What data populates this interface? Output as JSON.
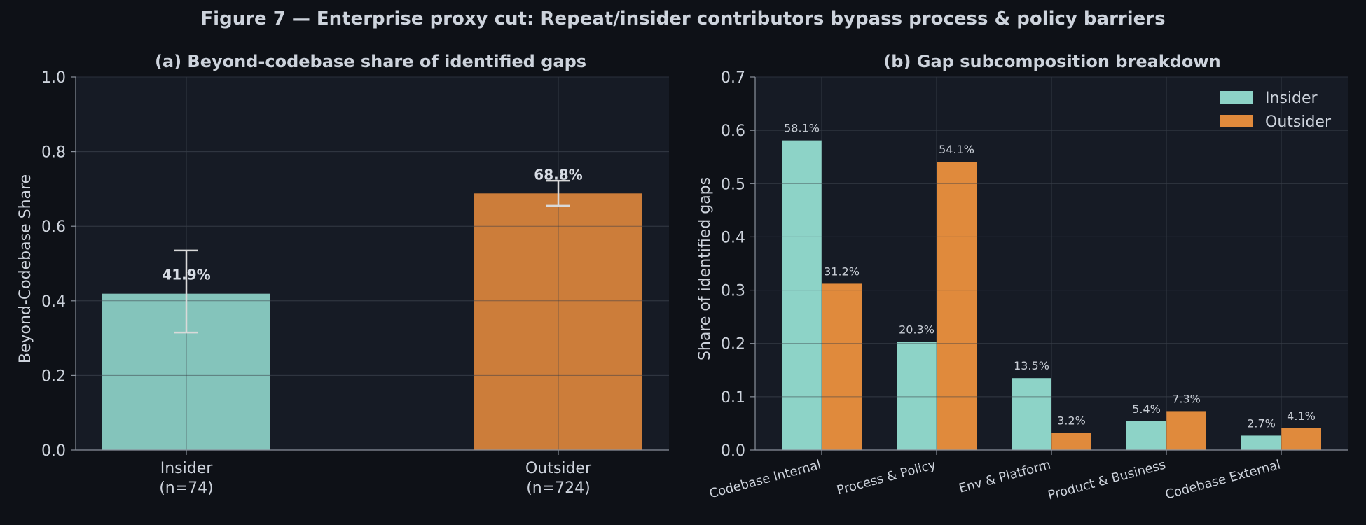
{
  "figure": {
    "title": "Figure 7 — Enterprise proxy cut: Repeat/insider contributors bypass process & policy barriers"
  },
  "colors": {
    "background": "#0e1117",
    "panel_bg": "#161b25",
    "grid": "#2a303c",
    "text": "#cdd3dc",
    "insider": "#8dd3c7",
    "outsider": "#e08a3c",
    "errorbar": "#d9d9d9"
  },
  "chart_data": [
    {
      "type": "bar",
      "title": "(a) Beyond-codebase share of identified gaps",
      "xlabel": "",
      "ylabel": "Beyond-Codebase Share",
      "ylim": [
        0,
        1.0
      ],
      "yticks": [
        "0.0",
        "0.2",
        "0.4",
        "0.6",
        "0.8",
        "1.0"
      ],
      "grid": true,
      "categories": [
        "Insider\n(n=74)",
        "Outsider\n(n=724)"
      ],
      "category_lines": [
        [
          "Insider",
          "(n=74)"
        ],
        [
          "Outsider",
          "(n=724)"
        ]
      ],
      "values": [
        0.419,
        0.688
      ],
      "error_low": [
        0.315,
        0.655
      ],
      "error_high": [
        0.535,
        0.722
      ],
      "value_labels": [
        "41.9%",
        "68.8%"
      ]
    },
    {
      "type": "bar",
      "title": "(b) Gap subcomposition breakdown",
      "xlabel": "",
      "ylabel": "Share of identified gaps",
      "ylim": [
        0,
        0.7
      ],
      "yticks": [
        "0.0",
        "0.1",
        "0.2",
        "0.3",
        "0.4",
        "0.5",
        "0.6",
        "0.7"
      ],
      "grid": true,
      "legend_position": "top-right",
      "categories": [
        "Codebase Internal",
        "Process & Policy",
        "Env & Platform",
        "Product & Business",
        "Codebase External"
      ],
      "series": [
        {
          "name": "Insider",
          "values": [
            0.581,
            0.203,
            0.135,
            0.054,
            0.027
          ],
          "labels": [
            "58.1%",
            "20.3%",
            "13.5%",
            "5.4%",
            "2.7%"
          ]
        },
        {
          "name": "Outsider",
          "values": [
            0.312,
            0.541,
            0.032,
            0.073,
            0.041
          ],
          "labels": [
            "31.2%",
            "54.1%",
            "3.2%",
            "7.3%",
            "4.1%"
          ]
        }
      ]
    }
  ]
}
